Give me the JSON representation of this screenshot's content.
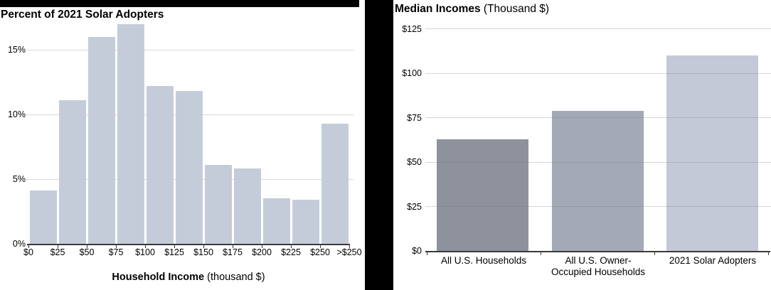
{
  "colors": {
    "frame_black": "#000000",
    "left_bar_fill": "#c5ccd9",
    "right_bar_fills": [
      "#8e929d",
      "#a3a9b5",
      "#c3c9d6"
    ],
    "gridline": "#d9d9d9",
    "axis": "#3a3a3a"
  },
  "left_panel": {
    "title": "Percent of 2021 Solar Adopters",
    "axis_title_bold": "Household Income",
    "axis_title_rest": " (thousand $)"
  },
  "right_panel": {
    "title_bold": "Median Incomes",
    "title_rest": " (Thousand $)",
    "cat_1": "All U.S. Households",
    "cat_2_line1": "All U.S. Owner-",
    "cat_2_line2": "Occupied Households",
    "cat_3": "2021 Solar Adopters"
  },
  "chart_data": [
    {
      "type": "bar",
      "subtype": "histogram",
      "title": "Percent of 2021 Solar Adopters",
      "xlabel": "Household Income (thousand $)",
      "ylabel": "Percent of 2021 Solar Adopters",
      "bin_edge_labels": [
        "$0",
        "$25",
        "$50",
        "$75",
        "$100",
        "$125",
        "$150",
        "$175",
        "$200",
        "$225",
        "$250",
        ">$250"
      ],
      "values": [
        4.1,
        11.1,
        16.0,
        17.0,
        12.2,
        11.8,
        6.1,
        5.8,
        3.5,
        3.4,
        9.3
      ],
      "y_tick_labels": [
        "0%",
        "5%",
        "10%",
        "15%"
      ],
      "y_tick_values": [
        0,
        5,
        10,
        15
      ],
      "ylim": [
        0,
        17.5
      ],
      "grid": true,
      "legend": false,
      "bar_color": "#c5ccd9"
    },
    {
      "type": "bar",
      "title": "Median Incomes (Thousand $)",
      "xlabel": "",
      "ylabel": "Median Income (Thousand $)",
      "categories": [
        "All U.S. Households",
        "All U.S. Owner-Occupied Households",
        "2021 Solar Adopters"
      ],
      "values": [
        63,
        79,
        110
      ],
      "y_tick_labels": [
        "$0",
        "$25",
        "$50",
        "$75",
        "$100",
        "$125"
      ],
      "y_tick_values": [
        0,
        25,
        50,
        75,
        100,
        125
      ],
      "ylim": [
        0,
        133
      ],
      "grid": true,
      "legend": false,
      "bar_colors": [
        "#8e929d",
        "#a3a9b5",
        "#c3c9d6"
      ]
    }
  ]
}
